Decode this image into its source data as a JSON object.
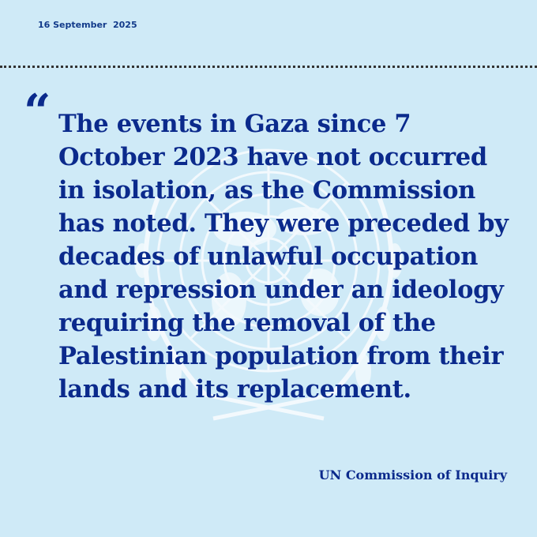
{
  "date": "16 September  2025",
  "quote": {
    "icon": "quotation-mark-icon",
    "lines": [
      "The events in Gaza since 7",
      "October 2023 have not occurred",
      "in isolation, as the Commission",
      "has noted. They were preceded by",
      "decades of unlawful occupation",
      "and repression under an ideology",
      "requiring the removal of the",
      "Palestinian population from their",
      "lands and its replacement."
    ]
  },
  "attribution": "UN Commission of Inquiry",
  "colors": {
    "background": "#cfeaf7",
    "text": "#0b2a8c"
  }
}
